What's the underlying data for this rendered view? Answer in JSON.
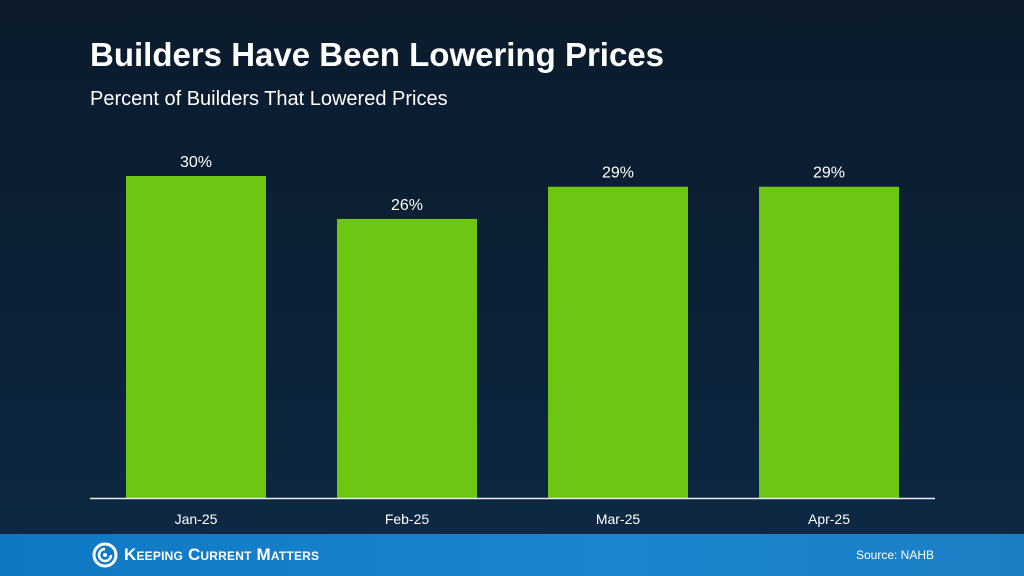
{
  "chart_data": {
    "type": "bar",
    "title": "Builders Have Been Lowering Prices",
    "subtitle": "Percent of Builders That Lowered Prices",
    "categories": [
      "Jan-25",
      "Feb-25",
      "Mar-25",
      "Apr-25"
    ],
    "values": [
      30,
      26,
      29,
      29
    ],
    "data_labels": [
      "30%",
      "26%",
      "29%",
      "29%"
    ],
    "xlabel": "",
    "ylabel": "",
    "ylim": [
      0,
      30
    ],
    "grid": false,
    "bar_color": "#6cc612"
  },
  "footer": {
    "brand": "Keeping Current Matters",
    "source": "Source: NAHB"
  },
  "colors": {
    "background": "#0c2238",
    "footer": "#1583cc"
  }
}
